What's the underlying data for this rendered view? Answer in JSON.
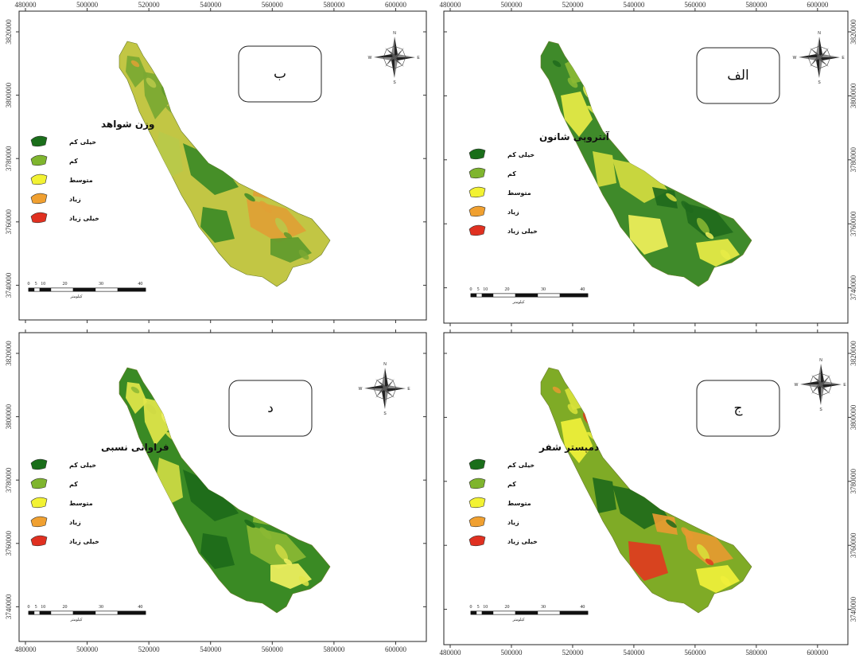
{
  "figure": {
    "panels": [
      {
        "id": "b",
        "label": "ب",
        "legend_title": "وزن شواهد",
        "legend_items": [
          "خیلی کم",
          "کم",
          "متوسط",
          "زیاد",
          "خیلی زیاد"
        ],
        "scale_numbers": [
          "0",
          "5",
          "10",
          "20",
          "30",
          "40"
        ],
        "scale_unit": "کیلومتر",
        "x_ticks": [
          "480000",
          "500000",
          "520000",
          "540000",
          "560000",
          "580000",
          "600000"
        ],
        "y_ticks": [
          "3820000",
          "3800000",
          "3780000",
          "3760000",
          "3740000"
        ],
        "palette": "evidence"
      },
      {
        "id": "alef",
        "label": "الف",
        "legend_title": "آنتروپی شانون",
        "legend_items": [
          "خیلی کم",
          "کم",
          "متوسط",
          "زیاد",
          "خیلی زیاد"
        ],
        "scale_numbers": [
          "0",
          "5",
          "10",
          "20",
          "30",
          "40"
        ],
        "scale_unit": "کیلومتر",
        "x_ticks": [
          "480000",
          "500000",
          "520000",
          "540000",
          "560000",
          "580000",
          "600000"
        ],
        "y_ticks": [
          "3820000",
          "3800000",
          "3780000",
          "3760000",
          "3740000"
        ],
        "palette": "entropy"
      },
      {
        "id": "dal",
        "label": "د",
        "legend_title": "فراوانی نسبی",
        "legend_items": [
          "خیلی کم",
          "کم",
          "متوسط",
          "زیاد",
          "خیلی زیاد"
        ],
        "scale_numbers": [
          "0",
          "5",
          "10",
          "20",
          "30",
          "40"
        ],
        "scale_unit": "کیلومتر",
        "x_ticks": [
          "480000",
          "500000",
          "520000",
          "540000",
          "560000",
          "580000",
          "600000"
        ],
        "y_ticks": [
          "3820000",
          "3800000",
          "3780000",
          "3760000",
          "3740000"
        ],
        "palette": "frequency"
      },
      {
        "id": "jim",
        "label": "ج",
        "legend_title": "دمپستر شفر",
        "legend_items": [
          "خیلی کم",
          "کم",
          "متوسط",
          "زیاد",
          "خیلی زیاد"
        ],
        "scale_numbers": [
          "0",
          "5",
          "10",
          "20",
          "30",
          "40"
        ],
        "scale_unit": "کیلومتر",
        "x_ticks": [
          "480000",
          "500000",
          "520000",
          "540000",
          "560000",
          "580000",
          "600000"
        ],
        "y_ticks": [
          "3820000",
          "3800000",
          "3780000",
          "3760000",
          "3740000"
        ],
        "palette": "dempster"
      }
    ],
    "compass_letters": [
      "N",
      "E",
      "S",
      "W"
    ],
    "legend_colors": [
      "#1a6e1a",
      "#7fb52e",
      "#f2f233",
      "#f0a030",
      "#e03020"
    ],
    "palettes": {
      "evidence": {
        "base": "#c2c644",
        "patches": [
          "#7aa832",
          "#3c8a26",
          "#e0a035",
          "#b9c94a",
          "#5f9a2c"
        ]
      },
      "entropy": {
        "base": "#3f8a2a",
        "patches": [
          "#e8ec47",
          "#d4dc40",
          "#1f6a1c",
          "#8bba34",
          "#f0f05a"
        ]
      },
      "frequency": {
        "base": "#3a8a24",
        "patches": [
          "#e2e64a",
          "#1d6a1a",
          "#8bb934",
          "#cfdb44",
          "#f0f060"
        ]
      },
      "dempster": {
        "base": "#7fab26",
        "patches": [
          "#f0f03a",
          "#1f6a1a",
          "#e69a30",
          "#d8e23a",
          "#e03a1e"
        ]
      }
    }
  }
}
